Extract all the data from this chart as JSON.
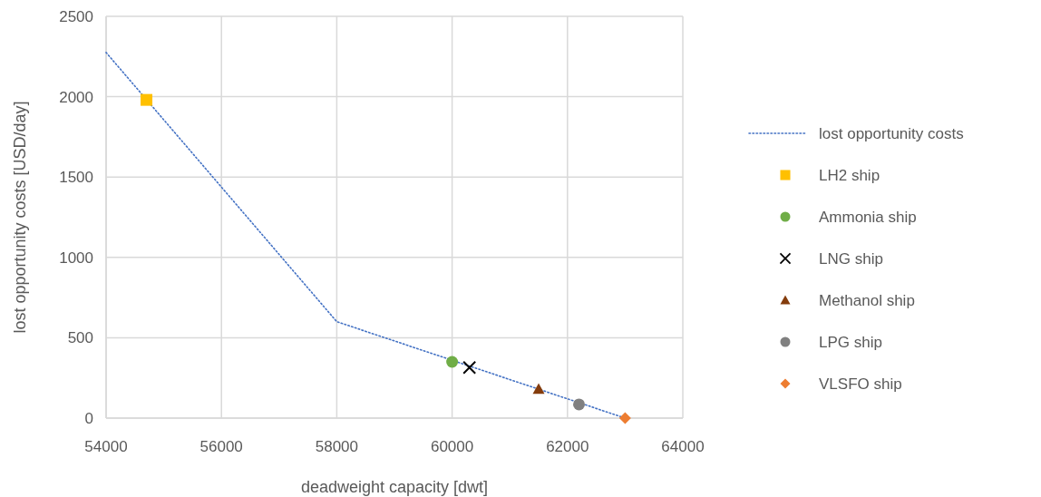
{
  "chart_data": {
    "type": "line",
    "xlabel": "deadweight capacity [dwt]",
    "ylabel": "lost opportunity costs [USD/day]",
    "xlim": [
      54000,
      64000
    ],
    "xticks": [
      54000,
      56000,
      58000,
      60000,
      62000,
      64000
    ],
    "ylim": [
      0,
      2500
    ],
    "yticks": [
      0,
      500,
      1000,
      1500,
      2000,
      2500
    ],
    "grid": true,
    "legend": "right",
    "series": [
      {
        "name": "lost opportunity costs",
        "color": "#4472c4",
        "line_style": "dotted",
        "marker": "none",
        "x": [
          54000,
          58000,
          63000
        ],
        "values": [
          2275,
          600,
          0
        ]
      },
      {
        "name": "LH2 ship",
        "type": "scatter",
        "color": "#ffc000",
        "marker": "square",
        "x": [
          54700
        ],
        "values": [
          1980
        ]
      },
      {
        "name": "Ammonia ship",
        "type": "scatter",
        "color": "#70ad47",
        "marker": "circle",
        "x": [
          60000
        ],
        "values": [
          350
        ]
      },
      {
        "name": "LNG ship",
        "type": "scatter",
        "color": "#000000",
        "marker": "cross",
        "x": [
          60300
        ],
        "values": [
          315
        ]
      },
      {
        "name": "Methanol ship",
        "type": "scatter",
        "color": "#843c0c",
        "marker": "triangle",
        "x": [
          61500
        ],
        "values": [
          180
        ]
      },
      {
        "name": "LPG ship",
        "type": "scatter",
        "color": "#808080",
        "marker": "circle",
        "x": [
          62200
        ],
        "values": [
          85
        ]
      },
      {
        "name": "VLSFO ship",
        "type": "scatter",
        "color": "#ed7d31",
        "marker": "diamond",
        "x": [
          63000
        ],
        "values": [
          0
        ]
      }
    ]
  }
}
